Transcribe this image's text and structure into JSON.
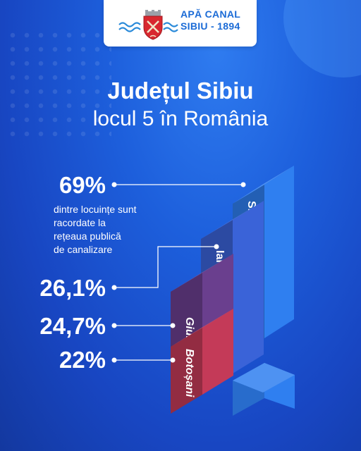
{
  "brand": {
    "line1": "APĂ CANAL",
    "line2": "SIBIU - 1894",
    "color": "#1b6bd6"
  },
  "header": {
    "title": "Județul Sibiu",
    "subtitle": "locul 5 în România"
  },
  "description": {
    "lines": [
      "dintre locuințe sunt",
      "racordate la",
      "rețeaua publică",
      "de canalizare"
    ]
  },
  "chart_data": {
    "type": "bar",
    "categories": [
      "Sibiu",
      "Ialomița",
      "Giurgiu",
      "Botoșani"
    ],
    "values": [
      69,
      26.1,
      24.7,
      22
    ],
    "value_labels": [
      "69%",
      "26,1%",
      "24,7%",
      "22%"
    ],
    "colors": [
      "#2f7ff0",
      "#3a63d8",
      "#6a3f8e",
      "#c43a58"
    ]
  }
}
